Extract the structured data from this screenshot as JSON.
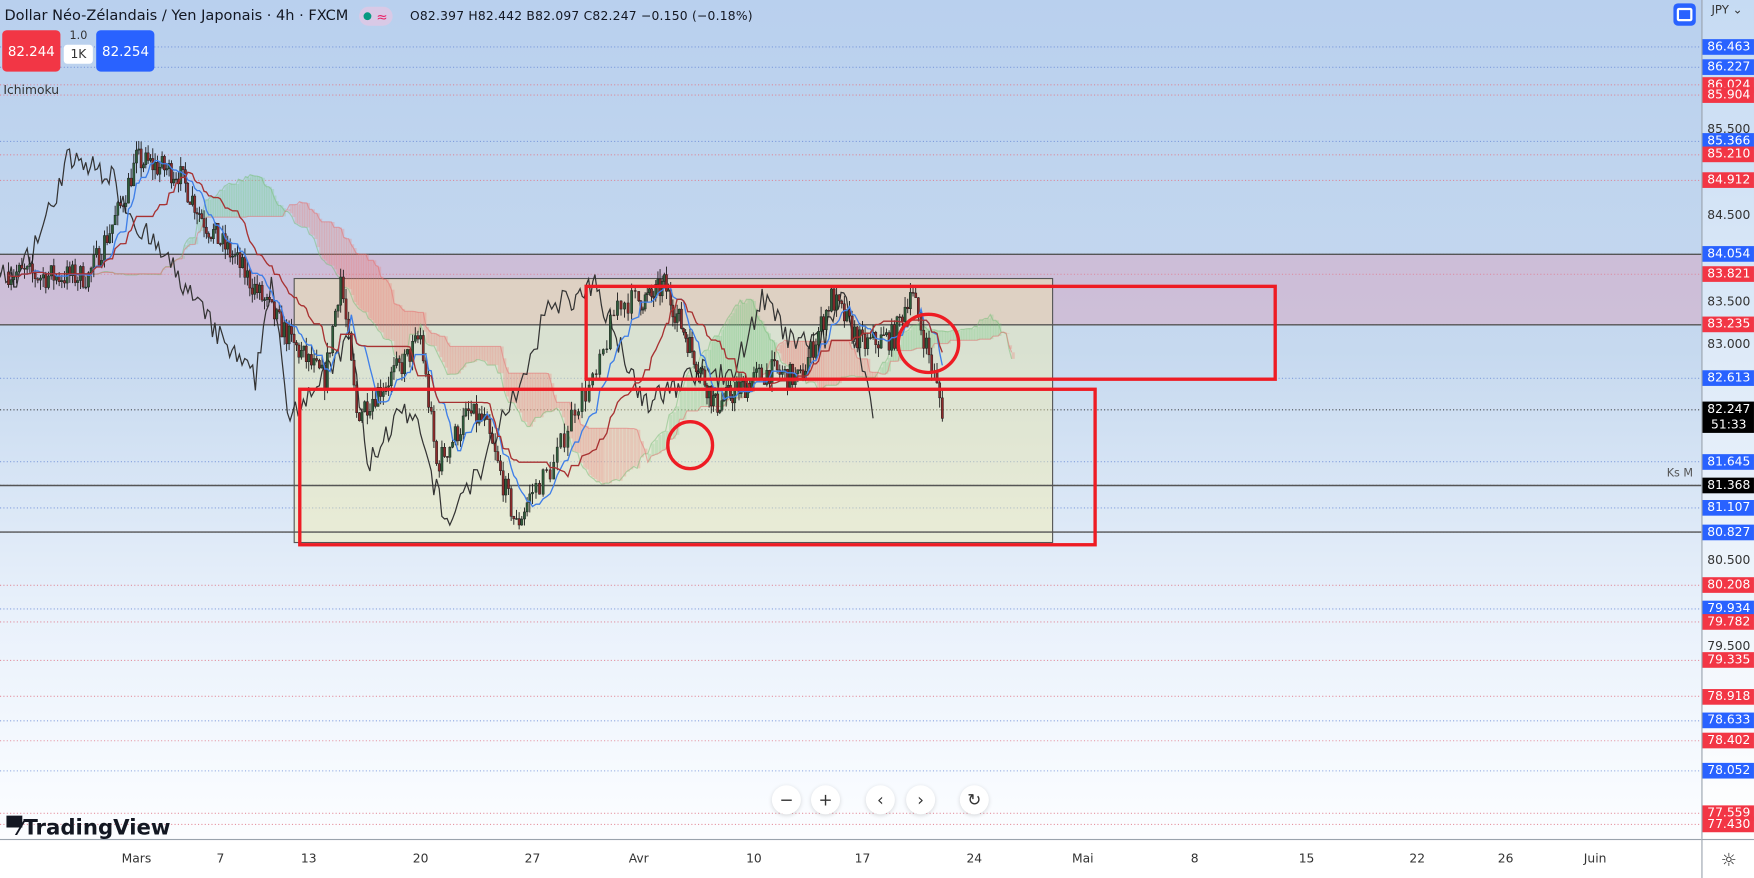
{
  "header": {
    "title": "Dollar Néo-Zélandais / Yen Japonais · 4h · FXCM",
    "ohlc": "O82.397 H82.442 B82.097 C82.247 −0.150 (−0.18%)",
    "status_icon": "green-dot",
    "approx_icon": "≈"
  },
  "trade": {
    "sell_price": "82.244",
    "buy_price": "82.254",
    "qty_top": "1.0",
    "qty": "1K"
  },
  "indicator": {
    "name": "Ichimoku"
  },
  "currency": "JPY ⌄",
  "price_axis": {
    "labels": [
      {
        "value": "86.463",
        "style": "blue"
      },
      {
        "value": "86.227",
        "style": "blue"
      },
      {
        "value": "86.024",
        "style": "red"
      },
      {
        "value": "85.904",
        "style": "red"
      },
      {
        "value": "85.500",
        "style": "plain"
      },
      {
        "value": "85.366",
        "style": "blue"
      },
      {
        "value": "85.210",
        "style": "red"
      },
      {
        "value": "84.912",
        "style": "red"
      },
      {
        "value": "84.500",
        "style": "plain"
      },
      {
        "value": "84.054",
        "style": "blue"
      },
      {
        "value": "83.821",
        "style": "red"
      },
      {
        "value": "83.500",
        "style": "plain"
      },
      {
        "value": "83.235",
        "style": "red"
      },
      {
        "value": "83.000",
        "style": "plain"
      },
      {
        "value": "82.613",
        "style": "blue"
      },
      {
        "value": "82.247",
        "style": "black",
        "sub": "51:33"
      },
      {
        "value": "81.645",
        "style": "blue"
      },
      {
        "value": "81.368",
        "style": "black"
      },
      {
        "value": "81.107",
        "style": "blue"
      },
      {
        "value": "80.827",
        "style": "blue"
      },
      {
        "value": "80.500",
        "style": "plain"
      },
      {
        "value": "80.208",
        "style": "red"
      },
      {
        "value": "79.934",
        "style": "blue"
      },
      {
        "value": "79.782",
        "style": "red"
      },
      {
        "value": "79.500",
        "style": "plain"
      },
      {
        "value": "79.335",
        "style": "red"
      },
      {
        "value": "78.918",
        "style": "red"
      },
      {
        "value": "78.633",
        "style": "blue"
      },
      {
        "value": "78.402",
        "style": "red"
      },
      {
        "value": "78.052",
        "style": "blue"
      },
      {
        "value": "77.559",
        "style": "red"
      },
      {
        "value": "77.430",
        "style": "red"
      }
    ],
    "ks_label": "Ks M"
  },
  "time_axis": {
    "labels": [
      "Mars",
      "7",
      "13",
      "20",
      "27",
      "Avr",
      "10",
      "17",
      "24",
      "Mai",
      "8",
      "15",
      "22",
      "26",
      "Juin"
    ]
  },
  "nav": {
    "zoom_out": "−",
    "zoom_in": "+",
    "left": "‹",
    "right": "›",
    "reset": "↻"
  },
  "logo": {
    "text": "TradingView"
  },
  "colors": {
    "up": "#2e5c3a",
    "down": "#8b2b2b",
    "tenkan": "#3f7fe8",
    "kijun": "#a83232",
    "chikou": "#333333",
    "annotation": "#ee1c24",
    "blue_label": "#2962ff",
    "red_label": "#f23645"
  },
  "chart_data": {
    "type": "candlestick",
    "symbol": "NZDJPY",
    "interval": "4h",
    "indicator": "Ichimoku",
    "ylim": [
      77.43,
      86.463
    ],
    "approx_close_path": [
      [
        "02-21",
        83.85
      ],
      [
        "02-23",
        83.8
      ],
      [
        "02-26",
        83.8
      ],
      [
        "02-28",
        84.6
      ],
      [
        "03-01",
        85.15
      ],
      [
        "03-04",
        85.0
      ],
      [
        "03-06",
        84.4
      ],
      [
        "03-08",
        84.0
      ],
      [
        "03-10",
        83.5
      ],
      [
        "03-12",
        83.0
      ],
      [
        "03-14",
        82.6
      ],
      [
        "03-15",
        83.8
      ],
      [
        "03-16",
        82.2
      ],
      [
        "03-19",
        82.8
      ],
      [
        "03-20",
        83.1
      ],
      [
        "03-21",
        81.6
      ],
      [
        "03-23",
        82.2
      ],
      [
        "03-24",
        82.1
      ],
      [
        "03-26",
        80.9
      ],
      [
        "03-27",
        81.3
      ],
      [
        "03-28",
        81.6
      ],
      [
        "03-29",
        82.3
      ],
      [
        "03-30",
        82.6
      ],
      [
        "03-31",
        83.5
      ],
      [
        "04-02",
        83.55
      ],
      [
        "04-03",
        83.7
      ],
      [
        "04-05",
        83.0
      ],
      [
        "04-07",
        82.3
      ],
      [
        "04-09",
        82.5
      ],
      [
        "04-11",
        82.7
      ],
      [
        "04-13",
        82.6
      ],
      [
        "04-15",
        83.55
      ],
      [
        "04-17",
        83.0
      ],
      [
        "04-19",
        83.1
      ],
      [
        "04-20",
        83.65
      ],
      [
        "04-21",
        83.0
      ],
      [
        "04-22",
        82.25
      ]
    ]
  }
}
